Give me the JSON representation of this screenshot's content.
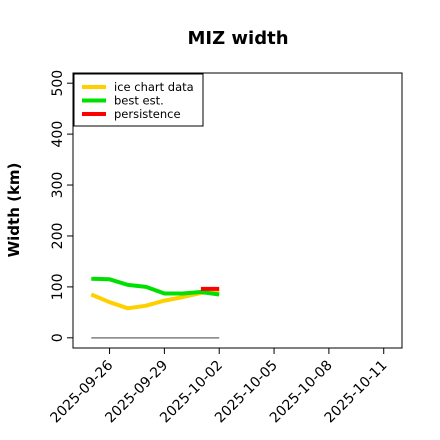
{
  "chart_data": {
    "type": "line",
    "title": "MIZ width",
    "ylabel": "Width (km)",
    "xlabel": "",
    "ylim": [
      -20,
      520
    ],
    "xlim": [
      "2025-09-24",
      "2025-10-12"
    ],
    "y_ticks": [
      0,
      100,
      200,
      300,
      400,
      500
    ],
    "x_ticks": [
      "2025-09-26",
      "2025-09-29",
      "2025-10-02",
      "2025-10-05",
      "2025-10-08",
      "2025-10-11"
    ],
    "grid": false,
    "legend_position": "top-left",
    "series": [
      {
        "name": "ice chart data",
        "color": "#FFD000",
        "points": [
          {
            "x": "2025-09-25",
            "y": 85
          },
          {
            "x": "2025-09-26",
            "y": 70
          },
          {
            "x": "2025-09-27",
            "y": 58
          },
          {
            "x": "2025-09-28",
            "y": 63
          },
          {
            "x": "2025-09-29",
            "y": 73
          },
          {
            "x": "2025-09-30",
            "y": 80
          },
          {
            "x": "2025-10-01",
            "y": 88
          },
          {
            "x": "2025-10-02",
            "y": 92
          }
        ]
      },
      {
        "name": "best est.",
        "color": "#00E000",
        "points": [
          {
            "x": "2025-09-25",
            "y": 116
          },
          {
            "x": "2025-09-26",
            "y": 115
          },
          {
            "x": "2025-09-27",
            "y": 104
          },
          {
            "x": "2025-09-28",
            "y": 100
          },
          {
            "x": "2025-09-29",
            "y": 87
          },
          {
            "x": "2025-09-30",
            "y": 87
          },
          {
            "x": "2025-10-01",
            "y": 90
          },
          {
            "x": "2025-10-02",
            "y": 85
          }
        ]
      },
      {
        "name": "persistence",
        "color": "#FF0000",
        "points": [
          {
            "x": "2025-10-01",
            "y": 96
          },
          {
            "x": "2025-10-02",
            "y": 96
          }
        ]
      }
    ],
    "reference_line": {
      "color": "#808080",
      "y": 0,
      "x_start": "2025-09-25",
      "x_end": "2025-10-02"
    }
  }
}
